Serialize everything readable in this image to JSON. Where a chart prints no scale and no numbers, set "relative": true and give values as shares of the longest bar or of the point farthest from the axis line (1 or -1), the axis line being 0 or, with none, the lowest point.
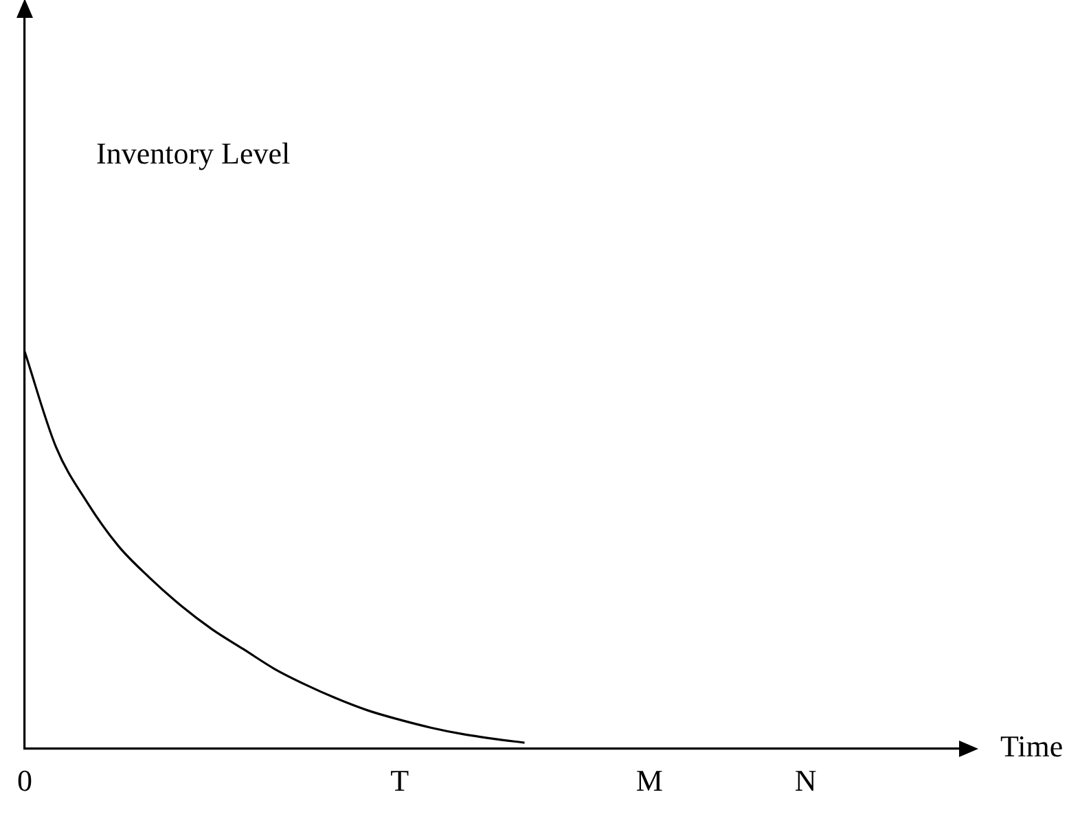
{
  "chart_data": {
    "type": "line",
    "relative": true,
    "xlabel": "Time",
    "annotations": [
      "Inventory Level"
    ],
    "categories": [
      "0",
      null,
      null,
      null,
      null,
      null,
      null,
      null,
      null,
      null,
      null,
      null,
      "T",
      null,
      null,
      null,
      null,
      null,
      null,
      null,
      "M",
      null,
      null,
      null,
      null,
      "N",
      null,
      null,
      null,
      null,
      null
    ],
    "values": [
      1,
      0.76,
      0.62,
      0.51,
      0.43,
      0.36,
      0.3,
      0.25,
      0.2,
      0.16,
      0.125,
      0.095,
      0.072,
      0.052,
      0.036,
      0.024,
      0.014,
      null,
      null,
      null,
      null,
      null,
      null,
      null,
      null,
      null,
      null,
      null,
      null,
      null,
      null
    ],
    "color": "#000000",
    "marker": "none",
    "line_style": "solid",
    "grid": false,
    "legend": false
  }
}
